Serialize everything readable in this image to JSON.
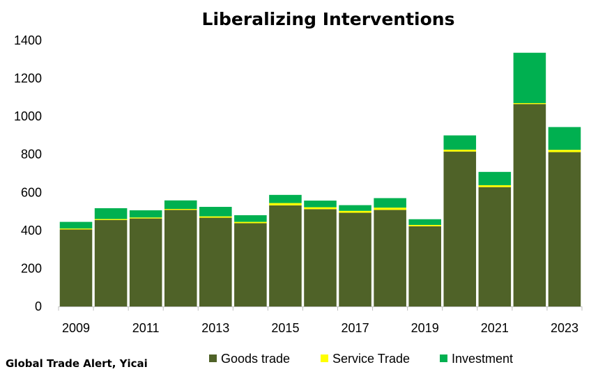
{
  "chart_data": {
    "type": "bar",
    "stacked": true,
    "title": "Liberalizing Interventions",
    "categories": [
      "2009",
      "2010",
      "2011",
      "2012",
      "2013",
      "2014",
      "2015",
      "2016",
      "2017",
      "2018",
      "2019",
      "2020",
      "2021",
      "2022",
      "2023"
    ],
    "x_tick_labels": [
      "2009",
      "2011",
      "2013",
      "2015",
      "2017",
      "2019",
      "2021",
      "2023"
    ],
    "y_ticks": [
      0,
      200,
      400,
      600,
      800,
      1000,
      1200,
      1400
    ],
    "ylim": [
      0,
      1400
    ],
    "grid": false,
    "legend_position": "bottom",
    "series": [
      {
        "name": "Goods trade",
        "color": "#4F6228",
        "values": [
          405,
          455,
          463,
          508,
          467,
          438,
          532,
          512,
          493,
          508,
          422,
          815,
          628,
          1065,
          812
        ]
      },
      {
        "name": "Service Trade",
        "color": "#FFFF00",
        "values": [
          5,
          5,
          5,
          5,
          7,
          7,
          12,
          10,
          10,
          12,
          7,
          10,
          10,
          5,
          12
        ]
      },
      {
        "name": "Investment",
        "color": "#00B050",
        "values": [
          35,
          57,
          38,
          45,
          50,
          35,
          43,
          35,
          30,
          50,
          30,
          75,
          70,
          265,
          120
        ]
      }
    ]
  },
  "source": "Global Trade Alert, Yicai"
}
